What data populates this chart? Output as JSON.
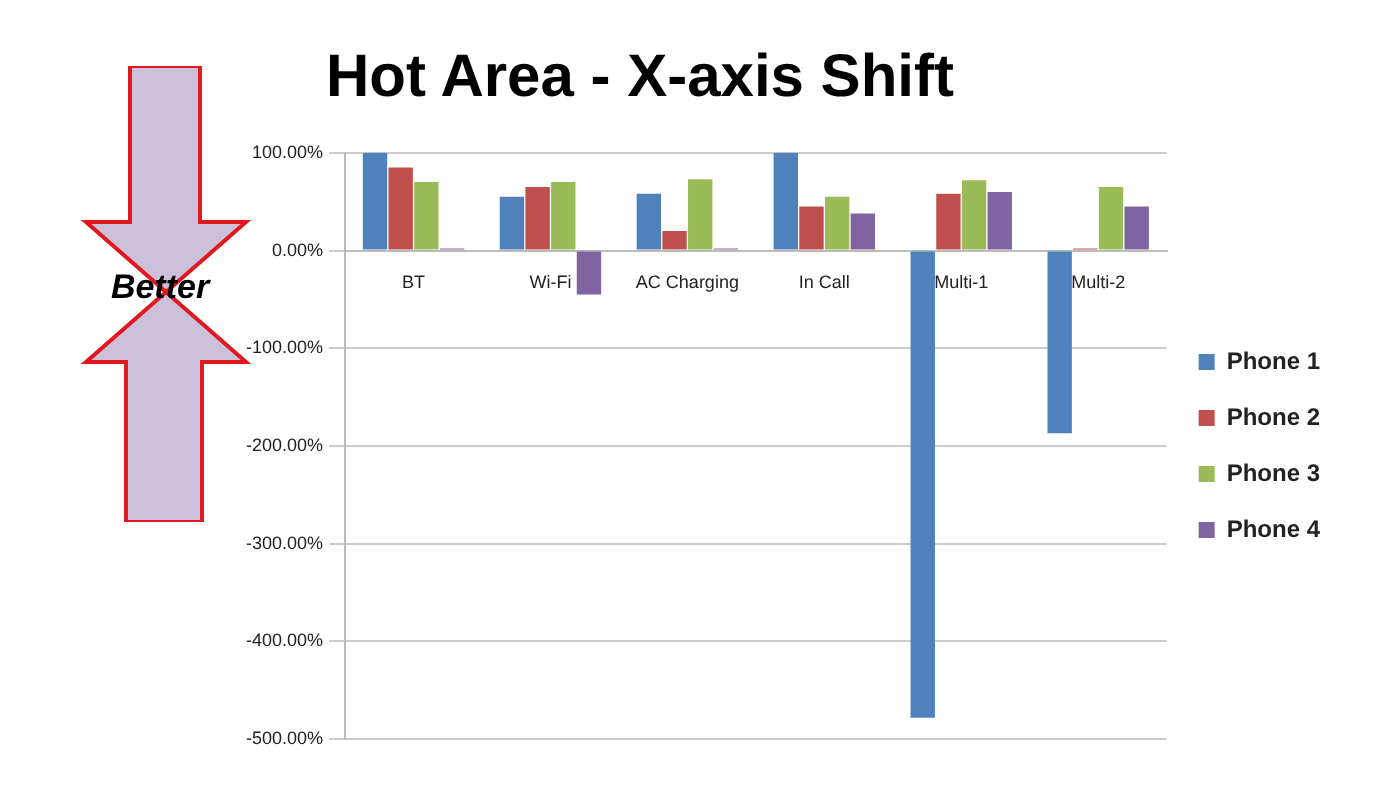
{
  "chart_data": {
    "type": "bar",
    "title": "Hot Area - X-axis Shift",
    "categories": [
      "BT",
      "Wi-Fi",
      "AC Charging",
      "In Call",
      "Multi-1",
      "Multi-2"
    ],
    "series": [
      {
        "name": "Phone 1",
        "color": "#4f81bd",
        "values": [
          100,
          55,
          58,
          100,
          -478,
          -187
        ]
      },
      {
        "name": "Phone 2",
        "color": "#c0504d",
        "values": [
          85,
          65,
          20,
          45,
          58,
          2
        ]
      },
      {
        "name": "Phone 3",
        "color": "#9bbb59",
        "values": [
          70,
          70,
          73,
          55,
          72,
          65
        ]
      },
      {
        "name": "Phone 4",
        "color": "#8064a2",
        "values": [
          2,
          -45,
          2,
          38,
          60,
          45
        ]
      }
    ],
    "ylim": [
      -500,
      100
    ],
    "yticks": [
      {
        "value": -500,
        "label": "-500.00%"
      },
      {
        "value": -400,
        "label": "-400.00%"
      },
      {
        "value": -300,
        "label": "-300.00%"
      },
      {
        "value": -200,
        "label": "-200.00%"
      },
      {
        "value": -100,
        "label": "-100.00%"
      },
      {
        "value": 0,
        "label": "0.00%"
      },
      {
        "value": 100,
        "label": "100.00%"
      }
    ],
    "grid": "y",
    "legend": "right",
    "annotations": [
      "Better"
    ]
  }
}
